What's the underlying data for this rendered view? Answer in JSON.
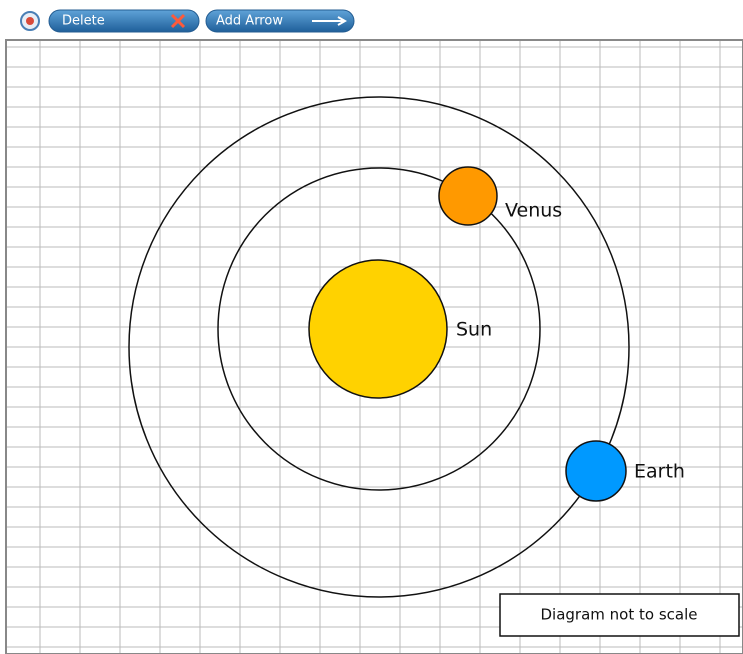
{
  "toolbar": {
    "buttons": [
      "Delete",
      "Add Arrow"
    ]
  },
  "diagram": {
    "bodies": [
      {
        "label": "Sun"
      },
      {
        "label": "Venus"
      },
      {
        "label": "Earth"
      }
    ],
    "note": "Diagram not to scale"
  }
}
